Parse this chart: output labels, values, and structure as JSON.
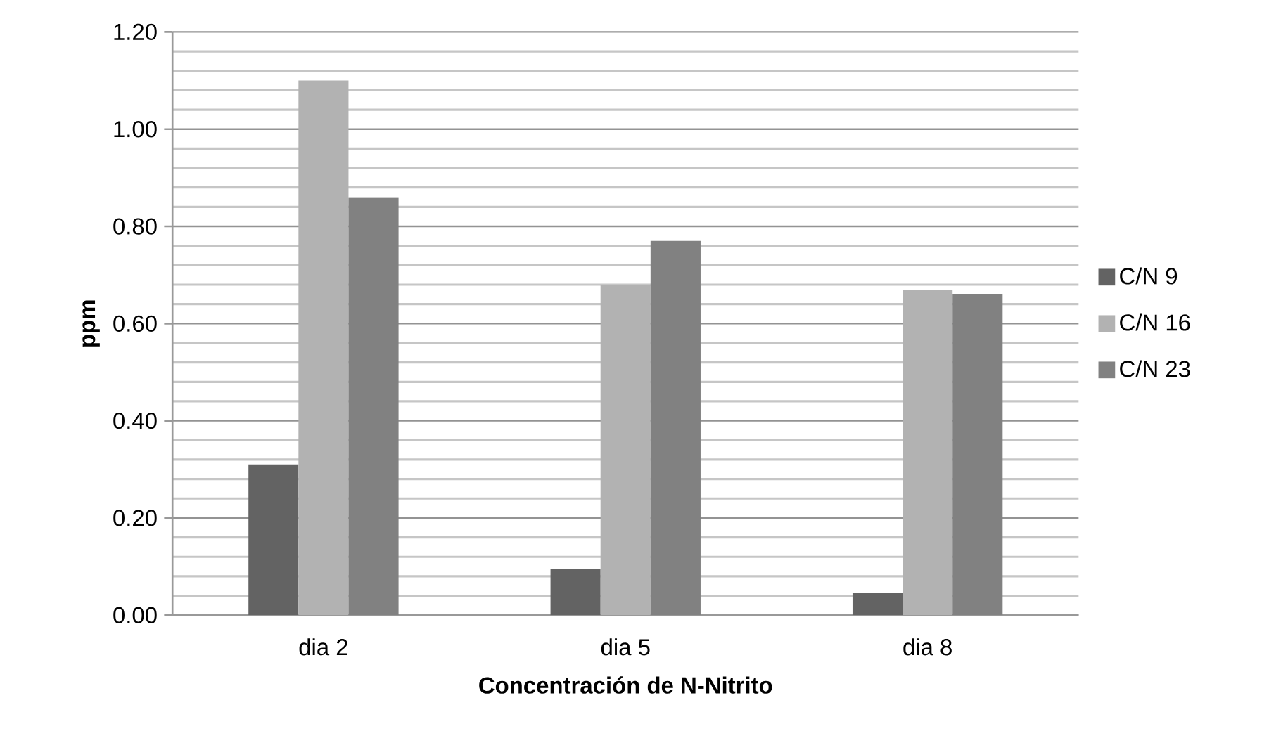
{
  "chart_data": {
    "type": "bar",
    "xlabel": "Concentración de N-Nitrito",
    "ylabel": "ppm",
    "categories": [
      "dia 2",
      "dia 5",
      "dia 8"
    ],
    "series": [
      {
        "name": "C/N 9",
        "color": "#636363",
        "values": [
          0.31,
          0.095,
          0.045
        ]
      },
      {
        "name": "C/N 16",
        "color": "#b2b2b2",
        "values": [
          1.1,
          0.68,
          0.67
        ]
      },
      {
        "name": "C/N 23",
        "color": "#818181",
        "values": [
          0.86,
          0.77,
          0.66
        ]
      }
    ],
    "ylim": [
      0,
      1.2
    ],
    "yticks": [
      {
        "value": 0,
        "label": "0.00"
      },
      {
        "value": 0.2,
        "label": "0.20"
      },
      {
        "value": 0.4,
        "label": "0.40"
      },
      {
        "value": 0.6,
        "label": "0.60"
      },
      {
        "value": 0.8,
        "label": "0.80"
      },
      {
        "value": 1.0,
        "label": "1.00"
      },
      {
        "value": 1.2,
        "label": "1.20"
      }
    ],
    "grid": "y",
    "legend": "right"
  }
}
